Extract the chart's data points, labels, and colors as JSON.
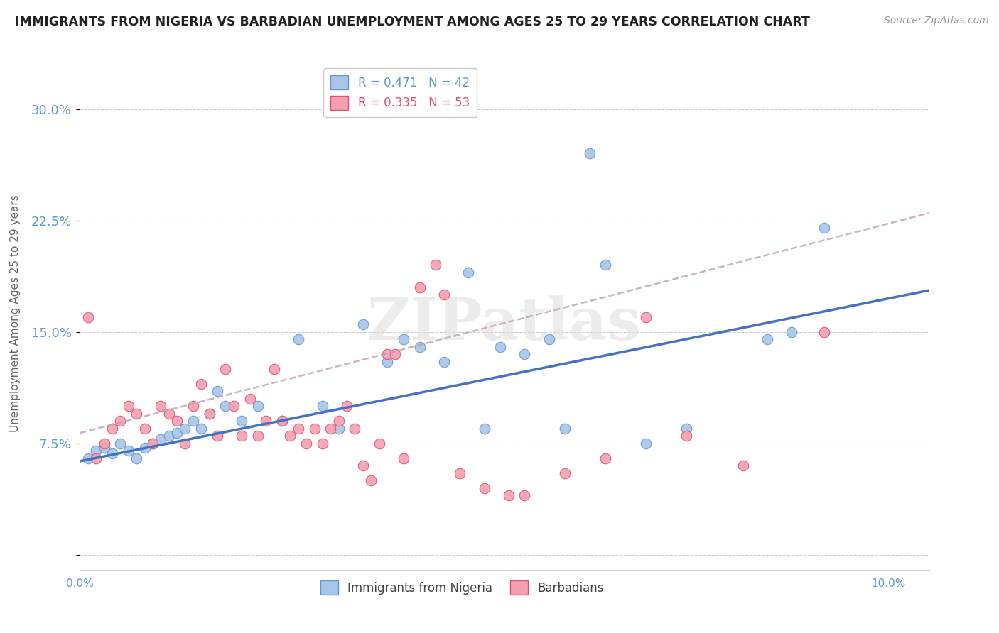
{
  "title": "IMMIGRANTS FROM NIGERIA VS BARBADIAN UNEMPLOYMENT AMONG AGES 25 TO 29 YEARS CORRELATION CHART",
  "source": "Source: ZipAtlas.com",
  "ylabel": "Unemployment Among Ages 25 to 29 years",
  "xlim": [
    0.0,
    0.105
  ],
  "ylim": [
    -0.01,
    0.335
  ],
  "yticks": [
    0.0,
    0.075,
    0.15,
    0.225,
    0.3
  ],
  "ytick_labels": [
    "",
    "7.5%",
    "15.0%",
    "22.5%",
    "30.0%"
  ],
  "xticks": [
    0.0,
    0.1
  ],
  "xtick_labels": [
    "0.0%",
    "10.0%"
  ],
  "legend_entries": [
    {
      "label": "R = 0.471   N = 42",
      "color": "#aac4e8",
      "edge": "#5b9bd5"
    },
    {
      "label": "R = 0.335   N = 53",
      "color": "#f4a0b0",
      "edge": "#e05070"
    }
  ],
  "blue_line_color": "#4472c4",
  "pink_line_color": "#c0b0c0",
  "blue_scatter_color": "#aac4e8",
  "pink_scatter_color": "#f4a0b0",
  "blue_edge_color": "#5b9bd5",
  "pink_edge_color": "#e05070",
  "watermark": "ZIPatlas",
  "nigeria_scatter_x": [
    0.001,
    0.002,
    0.003,
    0.004,
    0.005,
    0.006,
    0.007,
    0.008,
    0.009,
    0.01,
    0.011,
    0.012,
    0.013,
    0.014,
    0.015,
    0.016,
    0.017,
    0.018,
    0.02,
    0.022,
    0.025,
    0.027,
    0.03,
    0.032,
    0.035,
    0.038,
    0.04,
    0.042,
    0.045,
    0.048,
    0.05,
    0.052,
    0.055,
    0.058,
    0.06,
    0.063,
    0.065,
    0.07,
    0.075,
    0.085,
    0.088,
    0.092
  ],
  "nigeria_scatter_y": [
    0.065,
    0.07,
    0.072,
    0.068,
    0.075,
    0.07,
    0.065,
    0.072,
    0.075,
    0.078,
    0.08,
    0.082,
    0.085,
    0.09,
    0.085,
    0.095,
    0.11,
    0.1,
    0.09,
    0.1,
    0.09,
    0.145,
    0.1,
    0.085,
    0.155,
    0.13,
    0.145,
    0.14,
    0.13,
    0.19,
    0.085,
    0.14,
    0.135,
    0.145,
    0.085,
    0.27,
    0.195,
    0.075,
    0.085,
    0.145,
    0.15,
    0.22
  ],
  "barbadian_scatter_x": [
    0.001,
    0.002,
    0.003,
    0.004,
    0.005,
    0.006,
    0.007,
    0.008,
    0.009,
    0.01,
    0.011,
    0.012,
    0.013,
    0.014,
    0.015,
    0.016,
    0.017,
    0.018,
    0.019,
    0.02,
    0.021,
    0.022,
    0.023,
    0.024,
    0.025,
    0.026,
    0.027,
    0.028,
    0.029,
    0.03,
    0.031,
    0.032,
    0.033,
    0.034,
    0.035,
    0.036,
    0.037,
    0.038,
    0.039,
    0.04,
    0.042,
    0.044,
    0.045,
    0.047,
    0.05,
    0.053,
    0.055,
    0.06,
    0.065,
    0.07,
    0.075,
    0.082,
    0.092
  ],
  "barbadian_scatter_y": [
    0.16,
    0.065,
    0.075,
    0.085,
    0.09,
    0.1,
    0.095,
    0.085,
    0.075,
    0.1,
    0.095,
    0.09,
    0.075,
    0.1,
    0.115,
    0.095,
    0.08,
    0.125,
    0.1,
    0.08,
    0.105,
    0.08,
    0.09,
    0.125,
    0.09,
    0.08,
    0.085,
    0.075,
    0.085,
    0.075,
    0.085,
    0.09,
    0.1,
    0.085,
    0.06,
    0.05,
    0.075,
    0.135,
    0.135,
    0.065,
    0.18,
    0.195,
    0.175,
    0.055,
    0.045,
    0.04,
    0.04,
    0.055,
    0.065,
    0.16,
    0.08,
    0.06,
    0.15
  ],
  "nigeria_line_x": [
    0.0,
    0.105
  ],
  "nigeria_line_y": [
    0.063,
    0.178
  ],
  "barbadian_line_x": [
    0.0,
    0.105
  ],
  "barbadian_line_y": [
    0.082,
    0.23
  ],
  "bottom_legend": [
    {
      "label": "Immigrants from Nigeria",
      "face": "#aac4e8",
      "edge": "#5b9bd5"
    },
    {
      "label": "Barbadians",
      "face": "#f4a0b0",
      "edge": "#e05070"
    }
  ]
}
